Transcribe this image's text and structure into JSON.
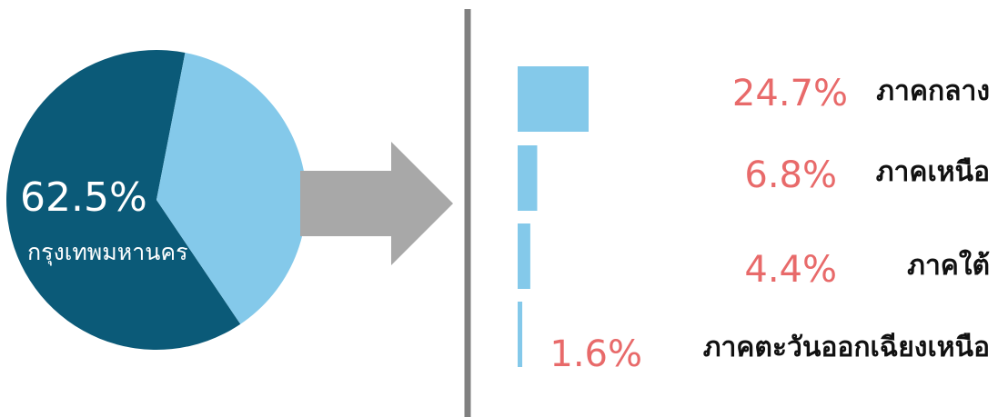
{
  "colors": {
    "pie_main": "#0b5a78",
    "pie_rest": "#84c9ea",
    "bar": "#84c9ea",
    "arrow": "#a8a8a8",
    "divider": "#808080",
    "pct_text": "#e86a6a"
  },
  "chart_data": [
    {
      "type": "pie",
      "slices": [
        {
          "label": "กรุงเทพมหานคร",
          "value": 62.5,
          "display": "62.5%"
        },
        {
          "label": "",
          "value": 37.5
        }
      ]
    },
    {
      "type": "bar",
      "orientation": "horizontal",
      "categories": [
        "ภาคกลาง",
        "ภาคเหนือ",
        "ภาคใต้",
        "ภาคตะวันออกเฉียงเหนือ"
      ],
      "values": [
        24.7,
        6.8,
        4.4,
        1.6
      ],
      "value_labels": [
        "24.7%",
        "6.8%",
        "4.4%",
        "1.6%"
      ]
    }
  ]
}
